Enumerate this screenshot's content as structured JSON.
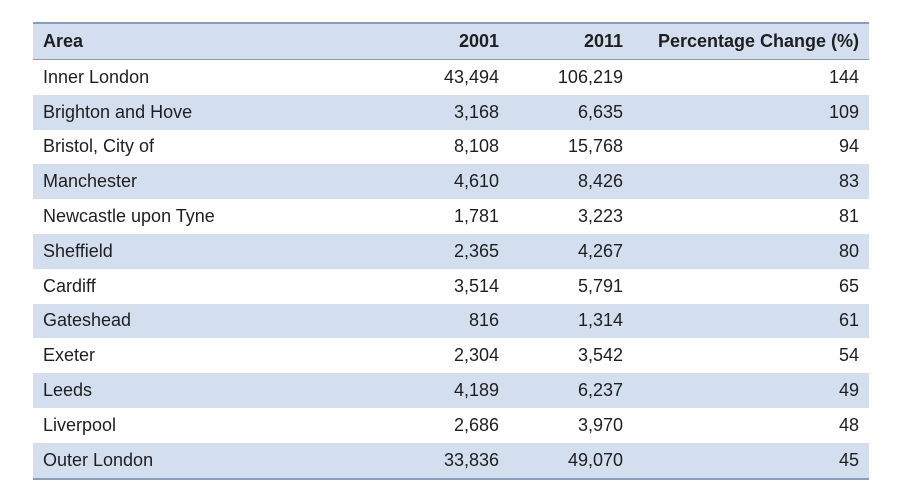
{
  "table": {
    "headers": [
      "Area",
      "2001",
      "2011",
      "Percentage Change (%)"
    ],
    "rows": [
      {
        "area": "Inner London",
        "y2001": "43,494",
        "y2011": "106,219",
        "pct": "144"
      },
      {
        "area": "Brighton and Hove",
        "y2001": "3,168",
        "y2011": "6,635",
        "pct": "109"
      },
      {
        "area": "Bristol, City of",
        "y2001": "8,108",
        "y2011": "15,768",
        "pct": "94"
      },
      {
        "area": "Manchester",
        "y2001": "4,610",
        "y2011": "8,426",
        "pct": "83"
      },
      {
        "area": "Newcastle upon Tyne",
        "y2001": "1,781",
        "y2011": "3,223",
        "pct": "81"
      },
      {
        "area": "Sheffield",
        "y2001": "2,365",
        "y2011": "4,267",
        "pct": "80"
      },
      {
        "area": "Cardiff",
        "y2001": "3,514",
        "y2011": "5,791",
        "pct": "65"
      },
      {
        "area": "Gateshead",
        "y2001": "816",
        "y2011": "1,314",
        "pct": "61"
      },
      {
        "area": "Exeter",
        "y2001": "2,304",
        "y2011": "3,542",
        "pct": "54"
      },
      {
        "area": "Leeds",
        "y2001": "4,189",
        "y2011": "6,237",
        "pct": "49"
      },
      {
        "area": "Liverpool",
        "y2001": "2,686",
        "y2011": "3,970",
        "pct": "48"
      },
      {
        "area": "Outer London",
        "y2001": "33,836",
        "y2011": "49,070",
        "pct": "45"
      }
    ]
  },
  "colors": {
    "band": "#d3deee",
    "rule": "#7f9fc8",
    "text": "#1f1f1f"
  }
}
